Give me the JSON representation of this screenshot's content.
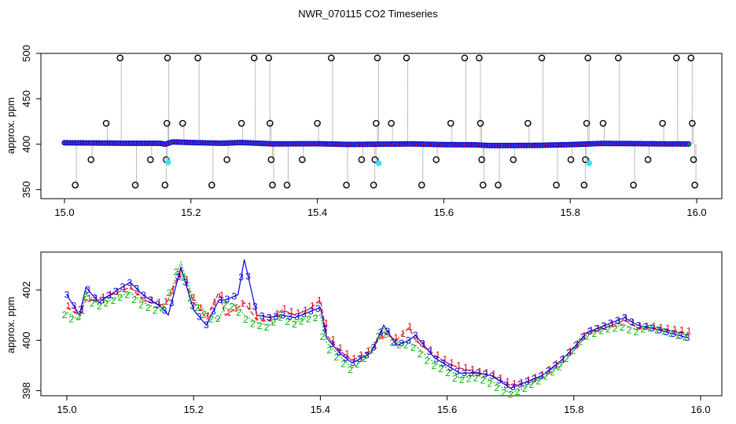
{
  "title": "NWR_070115  CO2 Timeseries",
  "colors": {
    "series_1": "#e8000b",
    "series_2": "#00b000",
    "series_3": "#0000e0",
    "flagged": "#40e0f0",
    "outlier": "#000000",
    "trace": "#909090",
    "blue_fill": "#3030f0"
  },
  "chart_data": [
    {
      "type": "scatter",
      "ylabel": "approx. ppm",
      "xlabel": "",
      "xlim": [
        15.0,
        16.0
      ],
      "ylim": [
        340,
        500
      ],
      "x_ticks": [
        "15.0",
        "15.2",
        "15.4",
        "15.6",
        "15.8",
        "16.0"
      ],
      "y_ticks": [
        "350",
        "400",
        "450",
        "500"
      ],
      "baseline": [
        [
          15.0,
          401.5
        ],
        [
          15.05,
          401.3
        ],
        [
          15.1,
          401.0
        ],
        [
          15.15,
          401.0
        ],
        [
          15.16,
          400.0
        ],
        [
          15.17,
          402.5
        ],
        [
          15.2,
          401.8
        ],
        [
          15.25,
          401.0
        ],
        [
          15.28,
          401.8
        ],
        [
          15.33,
          400.3
        ],
        [
          15.4,
          400.5
        ],
        [
          15.45,
          399.7
        ],
        [
          15.5,
          400.0
        ],
        [
          15.55,
          400.3
        ],
        [
          15.6,
          399.5
        ],
        [
          15.65,
          399.3
        ],
        [
          15.67,
          398.5
        ],
        [
          15.7,
          398.5
        ],
        [
          15.75,
          398.7
        ],
        [
          15.8,
          399.5
        ],
        [
          15.82,
          400.0
        ],
        [
          15.85,
          400.8
        ],
        [
          15.9,
          400.6
        ],
        [
          15.95,
          400.3
        ],
        [
          15.99,
          400.2
        ]
      ],
      "outliers": [
        {
          "x": 15.017,
          "y": 355
        },
        {
          "x": 15.042,
          "y": 383
        },
        {
          "x": 15.066,
          "y": 423
        },
        {
          "x": 15.088,
          "y": 495
        },
        {
          "x": 15.112,
          "y": 355
        },
        {
          "x": 15.136,
          "y": 383
        },
        {
          "x": 15.159,
          "y": 355
        },
        {
          "x": 15.161,
          "y": 383
        },
        {
          "x": 15.162,
          "y": 423
        },
        {
          "x": 15.163,
          "y": 495
        },
        {
          "x": 15.187,
          "y": 423
        },
        {
          "x": 15.211,
          "y": 495
        },
        {
          "x": 15.233,
          "y": 355
        },
        {
          "x": 15.257,
          "y": 383
        },
        {
          "x": 15.28,
          "y": 423
        },
        {
          "x": 15.3,
          "y": 495
        },
        {
          "x": 15.323,
          "y": 495
        },
        {
          "x": 15.325,
          "y": 423
        },
        {
          "x": 15.327,
          "y": 383
        },
        {
          "x": 15.329,
          "y": 355
        },
        {
          "x": 15.352,
          "y": 355
        },
        {
          "x": 15.376,
          "y": 383
        },
        {
          "x": 15.4,
          "y": 423
        },
        {
          "x": 15.422,
          "y": 495
        },
        {
          "x": 15.446,
          "y": 355
        },
        {
          "x": 15.47,
          "y": 383
        },
        {
          "x": 15.489,
          "y": 355
        },
        {
          "x": 15.491,
          "y": 383
        },
        {
          "x": 15.493,
          "y": 423
        },
        {
          "x": 15.495,
          "y": 495
        },
        {
          "x": 15.517,
          "y": 423
        },
        {
          "x": 15.541,
          "y": 495
        },
        {
          "x": 15.565,
          "y": 355
        },
        {
          "x": 15.588,
          "y": 383
        },
        {
          "x": 15.611,
          "y": 423
        },
        {
          "x": 15.633,
          "y": 495
        },
        {
          "x": 15.656,
          "y": 495
        },
        {
          "x": 15.658,
          "y": 423
        },
        {
          "x": 15.66,
          "y": 383
        },
        {
          "x": 15.662,
          "y": 355
        },
        {
          "x": 15.686,
          "y": 355
        },
        {
          "x": 15.71,
          "y": 383
        },
        {
          "x": 15.733,
          "y": 423
        },
        {
          "x": 15.755,
          "y": 495
        },
        {
          "x": 15.778,
          "y": 355
        },
        {
          "x": 15.801,
          "y": 383
        },
        {
          "x": 15.822,
          "y": 355
        },
        {
          "x": 15.824,
          "y": 383
        },
        {
          "x": 15.826,
          "y": 423
        },
        {
          "x": 15.828,
          "y": 495
        },
        {
          "x": 15.852,
          "y": 423
        },
        {
          "x": 15.876,
          "y": 495
        },
        {
          "x": 15.9,
          "y": 355
        },
        {
          "x": 15.923,
          "y": 383
        },
        {
          "x": 15.946,
          "y": 423
        },
        {
          "x": 15.968,
          "y": 495
        },
        {
          "x": 15.991,
          "y": 495
        },
        {
          "x": 15.993,
          "y": 423
        },
        {
          "x": 15.995,
          "y": 383
        },
        {
          "x": 15.997,
          "y": 355
        }
      ],
      "flagged": [
        {
          "x": 15.164,
          "y": 380
        },
        {
          "x": 15.497,
          "y": 379
        },
        {
          "x": 15.83,
          "y": 379
        }
      ]
    },
    {
      "type": "line",
      "ylabel": "approx. ppm",
      "xlabel": "",
      "xlim": [
        15.0,
        16.0
      ],
      "ylim": [
        397.8,
        403.5
      ],
      "x_ticks": [
        "15.0",
        "15.2",
        "15.4",
        "15.6",
        "15.8",
        "16.0"
      ],
      "y_ticks": [
        "398",
        "400",
        "402"
      ],
      "series": [
        {
          "name": "1",
          "x": [
            15.0,
            15.02,
            15.03,
            15.05,
            15.08,
            15.1,
            15.12,
            15.15,
            15.16,
            15.18,
            15.2,
            15.22,
            15.24,
            15.25,
            15.27,
            15.28,
            15.3,
            15.32,
            15.34,
            15.36,
            15.38,
            15.4,
            15.41,
            15.43,
            15.45,
            15.48,
            15.5,
            15.52,
            15.54,
            15.55,
            15.58,
            15.6,
            15.62,
            15.65,
            15.67,
            15.7,
            15.72,
            15.75,
            15.78,
            15.8,
            15.82,
            15.85,
            15.88,
            15.9,
            15.92,
            15.95,
            15.98
          ],
          "values": [
            401.3,
            401.0,
            401.6,
            401.6,
            401.9,
            402.1,
            401.6,
            401.4,
            401.6,
            402.8,
            401.5,
            400.9,
            401.9,
            401.0,
            401.3,
            401.5,
            400.8,
            400.8,
            401.2,
            401.0,
            401.2,
            401.6,
            400.2,
            399.6,
            399.2,
            399.6,
            400.3,
            400.0,
            400.5,
            400.0,
            399.4,
            399.1,
            398.9,
            398.7,
            398.6,
            398.2,
            398.3,
            398.6,
            399.2,
            399.7,
            400.3,
            400.5,
            400.8,
            400.5,
            400.5,
            400.4,
            400.3
          ]
        },
        {
          "name": "2",
          "x": [
            15.0,
            15.02,
            15.03,
            15.05,
            15.08,
            15.1,
            15.12,
            15.15,
            15.16,
            15.18,
            15.2,
            15.22,
            15.24,
            15.25,
            15.27,
            15.28,
            15.3,
            15.32,
            15.34,
            15.36,
            15.38,
            15.4,
            15.41,
            15.43,
            15.45,
            15.48,
            15.5,
            15.52,
            15.54,
            15.55,
            15.58,
            15.6,
            15.62,
            15.65,
            15.67,
            15.7,
            15.72,
            15.75,
            15.78,
            15.8,
            15.82,
            15.85,
            15.88,
            15.9,
            15.92,
            15.95,
            15.98
          ],
          "values": [
            401.1,
            400.8,
            401.9,
            401.4,
            401.7,
            401.9,
            401.5,
            401.2,
            401.6,
            403.1,
            401.6,
            401.1,
            400.8,
            401.5,
            401.4,
            401.0,
            400.7,
            400.6,
            401.0,
            400.7,
            400.9,
            401.0,
            399.9,
            399.4,
            398.9,
            399.5,
            400.5,
            399.9,
            399.9,
            399.8,
            399.1,
            398.9,
            398.5,
            398.6,
            398.4,
            397.9,
            398.1,
            398.5,
            399.0,
            399.6,
            400.2,
            400.5,
            400.6,
            400.4,
            400.6,
            400.4,
            400.2
          ]
        },
        {
          "name": "3",
          "x": [
            15.0,
            15.02,
            15.03,
            15.05,
            15.08,
            15.1,
            15.12,
            15.15,
            15.16,
            15.18,
            15.2,
            15.22,
            15.24,
            15.25,
            15.27,
            15.28,
            15.3,
            15.32,
            15.34,
            15.36,
            15.38,
            15.4,
            15.41,
            15.43,
            15.45,
            15.48,
            15.5,
            15.52,
            15.54,
            15.55,
            15.58,
            15.6,
            15.62,
            15.65,
            15.67,
            15.7,
            15.72,
            15.75,
            15.78,
            15.8,
            15.82,
            15.85,
            15.88,
            15.9,
            15.92,
            15.95,
            15.98
          ],
          "values": [
            401.8,
            401.0,
            402.1,
            401.5,
            402.0,
            402.3,
            401.8,
            401.3,
            401.0,
            402.9,
            401.2,
            400.6,
            401.6,
            401.6,
            401.8,
            403.2,
            401.0,
            400.9,
            401.0,
            400.9,
            401.1,
            401.3,
            400.1,
            399.5,
            399.1,
            399.5,
            400.6,
            399.8,
            400.0,
            400.2,
            399.3,
            399.0,
            398.7,
            398.7,
            398.6,
            398.1,
            398.3,
            398.6,
            399.2,
            399.7,
            400.3,
            400.6,
            400.9,
            400.6,
            400.5,
            400.3,
            400.1
          ]
        }
      ]
    }
  ]
}
